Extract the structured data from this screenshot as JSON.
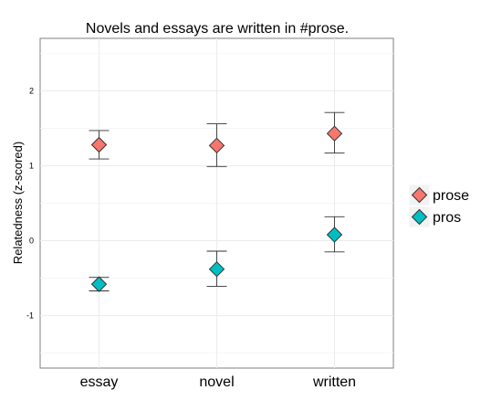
{
  "chart_data": {
    "type": "scatter",
    "title": "Novels and essays are written in #prose.",
    "xlabel": "",
    "ylabel": "Relatedness (z-scored)",
    "categories": [
      "essay",
      "novel",
      "written"
    ],
    "ylim": [
      -1.7,
      2.7
    ],
    "yticks": [
      -1,
      0,
      1,
      2
    ],
    "grid": true,
    "legend_position": "right",
    "series": [
      {
        "name": "prose",
        "color": "#F8766D",
        "marker": "diamond",
        "values": [
          1.28,
          1.27,
          1.43
        ],
        "err_low": [
          1.09,
          0.99,
          1.17
        ],
        "err_high": [
          1.47,
          1.56,
          1.71
        ]
      },
      {
        "name": "pros",
        "color": "#00BFC4",
        "marker": "diamond",
        "values": [
          -0.58,
          -0.38,
          0.08
        ],
        "err_low": [
          -0.67,
          -0.61,
          -0.15
        ],
        "err_high": [
          -0.49,
          -0.14,
          0.32
        ]
      }
    ]
  }
}
